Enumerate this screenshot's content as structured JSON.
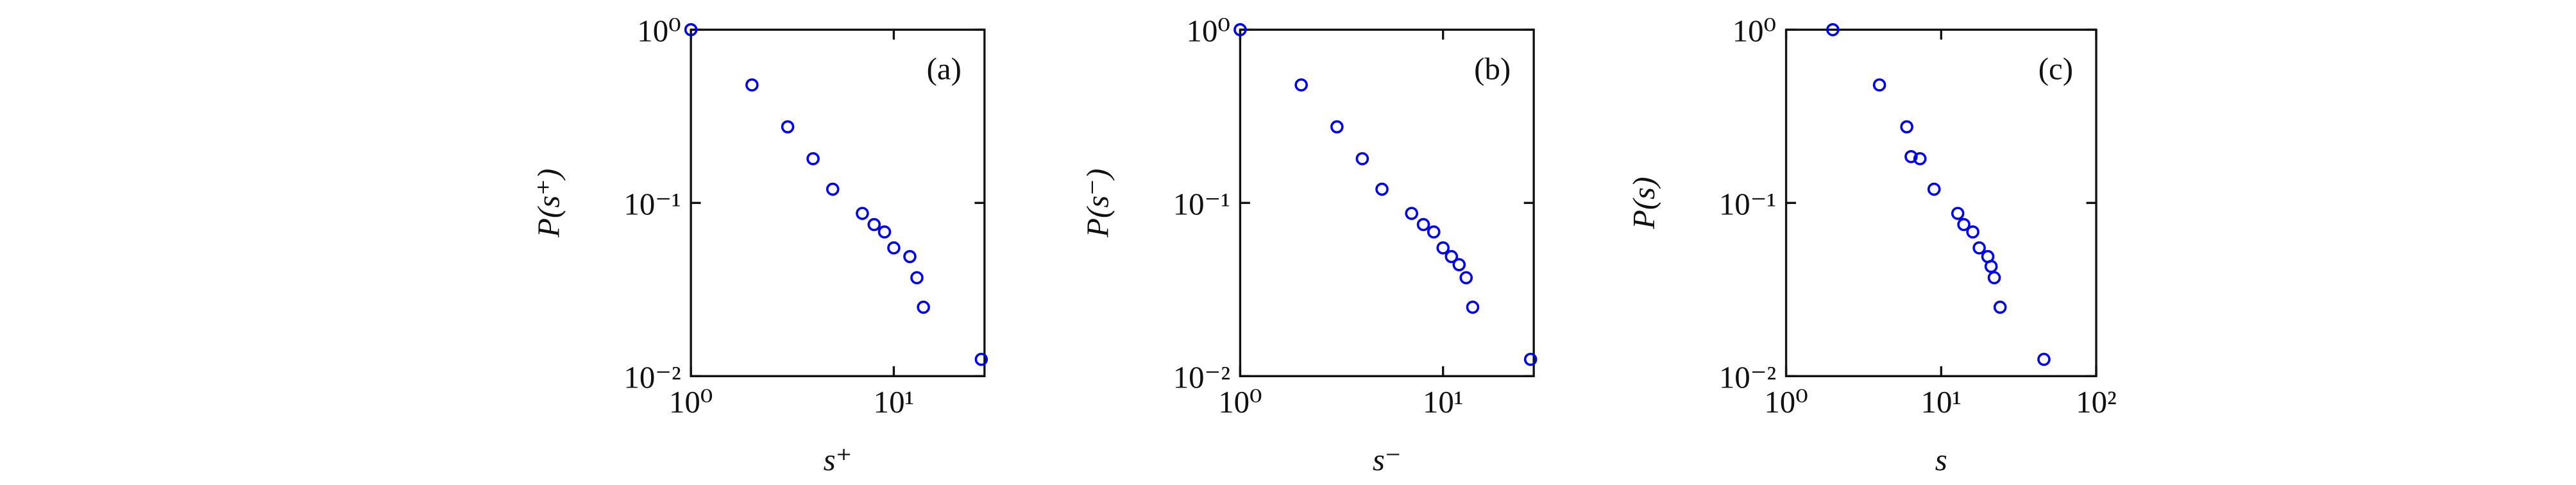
{
  "chart_data": [
    {
      "type": "scatter",
      "annotation": "(a)",
      "xlabel": "s⁺",
      "ylabel": "P(s⁺)",
      "color": "#0000ee",
      "log_x": true,
      "log_y": true,
      "x": [
        1,
        2,
        3,
        4,
        5,
        7,
        8,
        9,
        10,
        12,
        13,
        14,
        27
      ],
      "values": [
        1,
        0.48,
        0.275,
        0.18,
        0.12,
        0.087,
        0.075,
        0.068,
        0.055,
        0.049,
        0.037,
        0.025,
        0.0125
      ],
      "xlim": [
        1,
        28
      ],
      "ylim": [
        0.01,
        1
      ],
      "xticks": [
        {
          "value": 1,
          "label": "10⁰"
        },
        {
          "value": 10,
          "label": "10¹"
        }
      ],
      "yticks": [
        {
          "value": 0.01,
          "label": "10⁻²"
        },
        {
          "value": 0.1,
          "label": "10⁻¹"
        },
        {
          "value": 1,
          "label": "10⁰"
        }
      ]
    },
    {
      "type": "scatter",
      "annotation": "(b)",
      "xlabel": "s⁻",
      "ylabel": "P(s⁻)",
      "color": "#0000ee",
      "log_x": true,
      "log_y": true,
      "x": [
        1,
        2,
        3,
        4,
        5,
        7,
        8,
        9,
        10,
        11,
        12,
        13,
        14,
        27
      ],
      "values": [
        1,
        0.48,
        0.275,
        0.18,
        0.12,
        0.087,
        0.075,
        0.068,
        0.055,
        0.049,
        0.044,
        0.037,
        0.025,
        0.0125
      ],
      "xlim": [
        1,
        28
      ],
      "ylim": [
        0.01,
        1
      ],
      "xticks": [
        {
          "value": 1,
          "label": "10⁰"
        },
        {
          "value": 10,
          "label": "10¹"
        }
      ],
      "yticks": [
        {
          "value": 0.01,
          "label": "10⁻²"
        },
        {
          "value": 0.1,
          "label": "10⁻¹"
        },
        {
          "value": 1,
          "label": "10⁰"
        }
      ]
    },
    {
      "type": "scatter",
      "annotation": "(c)",
      "xlabel": "s",
      "ylabel": "P(s)",
      "color": "#0000ee",
      "log_x": true,
      "log_y": true,
      "x": [
        2,
        4,
        6,
        6.4,
        7.3,
        9,
        12.8,
        14,
        16,
        17.6,
        20,
        21,
        22,
        24,
        46
      ],
      "values": [
        1,
        0.48,
        0.275,
        0.185,
        0.18,
        0.12,
        0.087,
        0.075,
        0.068,
        0.055,
        0.049,
        0.043,
        0.037,
        0.025,
        0.0125
      ],
      "xlim": [
        1,
        100
      ],
      "ylim": [
        0.01,
        1
      ],
      "xticks": [
        {
          "value": 1,
          "label": "10⁰"
        },
        {
          "value": 10,
          "label": "10¹"
        },
        {
          "value": 100,
          "label": "10²"
        }
      ],
      "yticks": [
        {
          "value": 0.01,
          "label": "10⁻²"
        },
        {
          "value": 0.1,
          "label": "10⁻¹"
        },
        {
          "value": 1,
          "label": "10⁰"
        }
      ]
    }
  ]
}
